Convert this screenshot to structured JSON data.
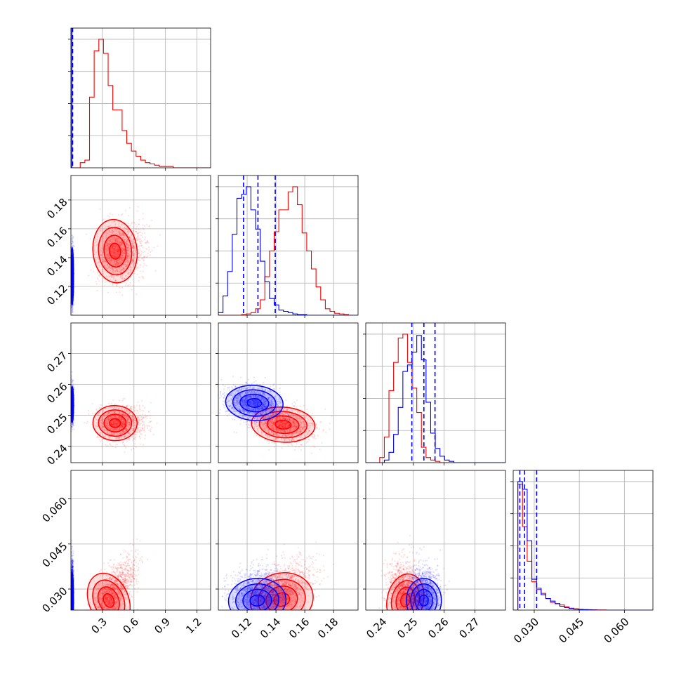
{
  "chart_data": {
    "type": "corner",
    "title": "",
    "params": [
      {
        "range": [
          0.0,
          1.33
        ],
        "ticks": [
          0.3,
          0.6,
          0.9,
          1.2
        ],
        "labels": [
          "0.3",
          "0.6",
          "0.9",
          "1.2"
        ]
      },
      {
        "range": [
          0.1,
          0.197
        ],
        "ticks": [
          0.12,
          0.14,
          0.16,
          0.18
        ],
        "labels": [
          "0.12",
          "0.14",
          "0.16",
          "0.18"
        ]
      },
      {
        "range": [
          0.2347,
          0.2799
        ],
        "ticks": [
          0.24,
          0.25,
          0.26,
          0.27
        ],
        "labels": [
          "0.24",
          "0.25",
          "0.26",
          "0.27"
        ]
      },
      {
        "range": [
          0.023,
          0.0695
        ],
        "ticks": [
          0.03,
          0.045,
          0.06
        ],
        "labels": [
          "0.030",
          "0.045",
          "0.060"
        ]
      }
    ],
    "series": [
      {
        "color": "#ff0000",
        "quantiles": [
          null,
          null,
          null,
          null
        ],
        "hist_max": [
          1.0,
          1.0,
          1.0,
          1.0
        ],
        "histograms": [
          {
            "x0": 0.0,
            "bin": 0.0443,
            "counts": [
              0,
              0,
              0.04,
              0.06,
              0.55,
              0.91,
              1.0,
              0.89,
              0.64,
              0.45,
              0.45,
              0.29,
              0.19,
              0.13,
              0.09,
              0.06,
              0.04,
              0.03,
              0.02,
              0.01,
              0.01,
              0.01,
              0.0,
              0.0,
              0.0,
              0.0,
              0.0,
              0.0,
              0.0,
              0.0
            ]
          },
          {
            "x0": 0.1,
            "bin": 0.00323,
            "counts": [
              0,
              0,
              0,
              0,
              0,
              0.005,
              0.01,
              0.02,
              0.05,
              0.12,
              0.3,
              0.5,
              0.65,
              0.82,
              0.82,
              0.96,
              1.0,
              0.86,
              0.64,
              0.5,
              0.36,
              0.22,
              0.12,
              0.05,
              0.03,
              0.015,
              0.01,
              0.005,
              0.0,
              0.0
            ]
          },
          {
            "x0": 0.2347,
            "bin": 0.0015,
            "counts": [
              0,
              0,
              0,
              0.04,
              0.2,
              0.56,
              0.78,
              0.97,
              1.0,
              0.78,
              0.58,
              0.39,
              0.12,
              0.04,
              0.02,
              0.01,
              0.0,
              0.0,
              0.0,
              0.0,
              0.0,
              0.0,
              0.0,
              0.0,
              0.0,
              0.0,
              0.0,
              0.0,
              0.0,
              0.0
            ]
          },
          {
            "x0": 0.023,
            "bin": 0.00155,
            "counts": [
              0,
              0.98,
              0.65,
              0.38,
              0.22,
              0.16,
              0.13,
              0.09,
              0.06,
              0.05,
              0.04,
              0.025,
              0.015,
              0.01,
              0.006,
              0.004,
              0.003,
              0.002,
              0.001,
              0.001,
              0.0,
              0.0,
              0.0,
              0.0,
              0.0,
              0.0,
              0.0,
              0.0,
              0.0,
              0.0
            ]
          }
        ],
        "pairs": {
          "1-0": {
            "mean": [
              0.42,
              0.1445
            ],
            "sd": [
              0.1,
              0.0105
            ],
            "rho": 0.12,
            "skew": 1
          },
          "2-0": {
            "mean": [
              0.42,
              0.2475
            ],
            "sd": [
              0.1,
              0.0027
            ],
            "rho": -0.05,
            "skew": 1
          },
          "3-0": {
            "mean": [
              0.36,
              0.0262
            ],
            "sd": [
              0.09,
              0.0045
            ],
            "rho": 0.55,
            "skew": 1
          },
          "2-1": {
            "mean": [
              0.145,
              0.247
            ],
            "sd": [
              0.0105,
              0.0027
            ],
            "rho": -0.2,
            "skew": 0
          },
          "3-1": {
            "mean": [
              0.144,
              0.0265
            ],
            "sd": [
              0.0105,
              0.0042
            ],
            "rho": 0.55,
            "skew": 1
          },
          "3-2": {
            "mean": [
              0.2475,
              0.0263
            ],
            "sd": [
              0.0028,
              0.0042
            ],
            "rho": -0.25,
            "skew": 1
          }
        }
      },
      {
        "color": "#0000ff",
        "quantiles": [
          [
            0.0118,
            0.0138,
            0.0165
          ],
          [
            0.1175,
            0.1275,
            0.1395
          ],
          [
            0.2496,
            0.2535,
            0.2571
          ],
          [
            0.0252,
            0.0268,
            0.0308
          ]
        ],
        "hist_max": [
          null,
          1.0,
          1.0,
          1.0
        ],
        "histograms": [
          {
            "x0": 0.0,
            "bin": 0.0443,
            "counts": [
              1.0,
              0,
              0,
              0,
              0,
              0,
              0,
              0,
              0,
              0,
              0,
              0,
              0,
              0,
              0,
              0,
              0,
              0,
              0,
              0,
              0,
              0,
              0,
              0,
              0,
              0,
              0,
              0,
              0,
              0
            ]
          },
          {
            "x0": 0.1,
            "bin": 0.00323,
            "counts": [
              0.02,
              0.15,
              0.34,
              0.63,
              0.91,
              0.94,
              1.0,
              0.82,
              0.67,
              0.42,
              0.26,
              0.13,
              0.08,
              0.04,
              0.03,
              0.02,
              0.01,
              0.005,
              0.005,
              0.0,
              0.0,
              0.0,
              0.0,
              0.0,
              0.0,
              0.0,
              0.0,
              0.0,
              0.0,
              0.0
            ]
          },
          {
            "x0": 0.2347,
            "bin": 0.0015,
            "counts": [
              0,
              0,
              0,
              0,
              0.02,
              0.08,
              0.22,
              0.43,
              0.71,
              0.76,
              0.86,
              0.99,
              0.8,
              0.47,
              0.23,
              0.11,
              0.05,
              0.02,
              0.01,
              0.0,
              0.0,
              0.0,
              0.0,
              0.0,
              0.0,
              0.0,
              0.0,
              0.0,
              0.0,
              0.0
            ]
          },
          {
            "x0": 0.023,
            "bin": 0.00155,
            "counts": [
              0,
              1.0,
              0.94,
              0.54,
              0.24,
              0.17,
              0.12,
              0.09,
              0.07,
              0.05,
              0.03,
              0.02,
              0.012,
              0.008,
              0.005,
              0.003,
              0.002,
              0.001,
              0.0,
              0.0,
              0.0,
              0.0,
              0.0,
              0.0,
              0.0,
              0.0,
              0.0,
              0.0,
              0.0,
              0.0
            ]
          }
        ],
        "pairs": {
          "1-0": {
            "mean": [
              0.012,
              0.127
            ],
            "sd": [
              0.006,
              0.0095
            ],
            "rho": 0.0,
            "skew": 0
          },
          "2-0": {
            "mean": [
              0.012,
              0.2535
            ],
            "sd": [
              0.006,
              0.0028
            ],
            "rho": 0.0,
            "skew": 0
          },
          "3-0": {
            "mean": [
              0.012,
              0.0262
            ],
            "sd": [
              0.006,
              0.0045
            ],
            "rho": 0.0,
            "skew": 1
          },
          "2-1": {
            "mean": [
              0.125,
              0.254
            ],
            "sd": [
              0.0095,
              0.0027
            ],
            "rho": -0.2,
            "skew": 0
          },
          "3-1": {
            "mean": [
              0.127,
              0.0262
            ],
            "sd": [
              0.0095,
              0.0035
            ],
            "rho": 0.15,
            "skew": 1
          },
          "3-2": {
            "mean": [
              0.2535,
              0.0262
            ],
            "sd": [
              0.0027,
              0.0035
            ],
            "rho": 0.0,
            "skew": 1
          }
        }
      }
    ]
  }
}
